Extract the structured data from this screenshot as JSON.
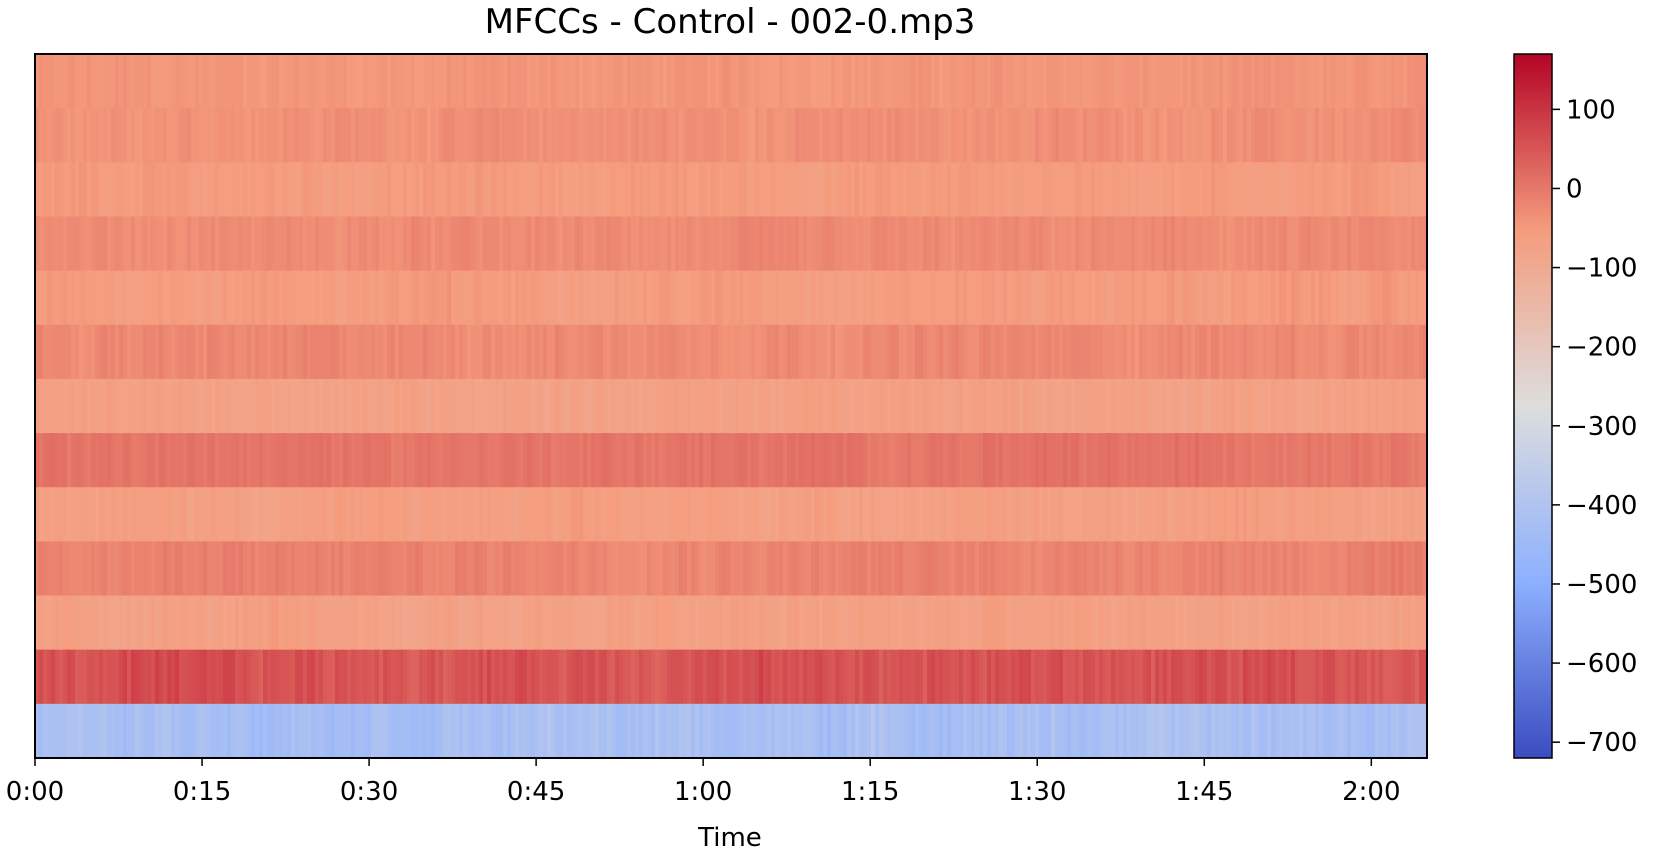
{
  "chart_data": {
    "type": "heatmap",
    "title": "MFCCs - Control - 002-0.mp3",
    "xlabel": "Time",
    "ylabel": "",
    "x_unit": "seconds",
    "xlim": [
      0,
      125
    ],
    "x_ticks": [
      {
        "value": 0,
        "label": "0:00"
      },
      {
        "value": 15,
        "label": "0:15"
      },
      {
        "value": 30,
        "label": "0:30"
      },
      {
        "value": 45,
        "label": "0:45"
      },
      {
        "value": 60,
        "label": "1:00"
      },
      {
        "value": 75,
        "label": "1:15"
      },
      {
        "value": 90,
        "label": "1:30"
      },
      {
        "value": 105,
        "label": "1:45"
      },
      {
        "value": 120,
        "label": "2:00"
      }
    ],
    "colormap": "coolwarm",
    "colorbar": {
      "range": [
        -720,
        170
      ],
      "ticks": [
        {
          "value": 100,
          "label": "100"
        },
        {
          "value": 0,
          "label": "0"
        },
        {
          "value": -100,
          "label": "−100"
        },
        {
          "value": -200,
          "label": "−200"
        },
        {
          "value": -300,
          "label": "−300"
        },
        {
          "value": -400,
          "label": "−400"
        },
        {
          "value": -500,
          "label": "−500"
        },
        {
          "value": -600,
          "label": "−600"
        },
        {
          "value": -700,
          "label": "−700"
        }
      ]
    },
    "coefficients_top_to_bottom": [
      {
        "index": 12,
        "mean": -45,
        "variation": 10
      },
      {
        "index": 11,
        "mean": -35,
        "variation": 12
      },
      {
        "index": 10,
        "mean": -55,
        "variation": 12
      },
      {
        "index": 9,
        "mean": -30,
        "variation": 12
      },
      {
        "index": 8,
        "mean": -55,
        "variation": 14
      },
      {
        "index": 7,
        "mean": -25,
        "variation": 14
      },
      {
        "index": 6,
        "mean": -70,
        "variation": 14
      },
      {
        "index": 5,
        "mean": 5,
        "variation": 12
      },
      {
        "index": 4,
        "mean": -65,
        "variation": 14
      },
      {
        "index": 3,
        "mean": -15,
        "variation": 14
      },
      {
        "index": 2,
        "mean": -70,
        "variation": 16
      },
      {
        "index": 1,
        "mean": 55,
        "variation": 22
      },
      {
        "index": 0,
        "mean": -420,
        "variation": 28
      }
    ]
  }
}
